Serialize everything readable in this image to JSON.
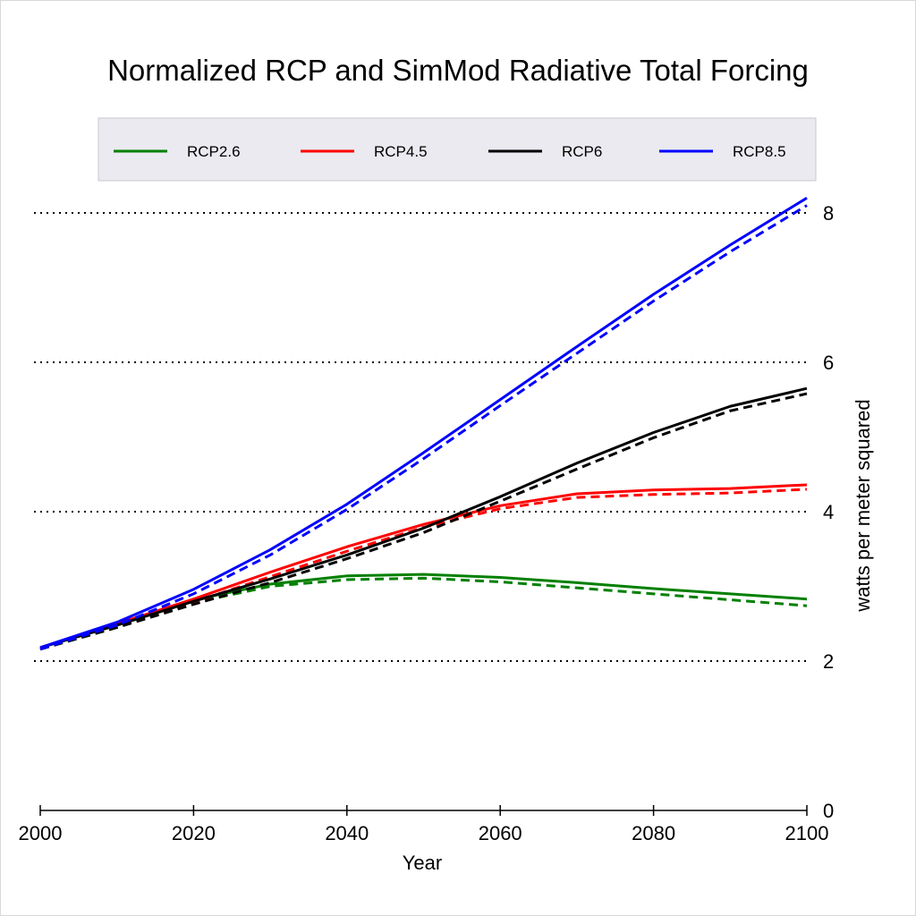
{
  "chart_data": {
    "type": "line",
    "title": "Normalized RCP and SimMod Radiative Total Forcing",
    "xlabel": "Year",
    "ylabel": "watts per meter squared",
    "xlim": [
      2000,
      2100
    ],
    "ylim": [
      0,
      8
    ],
    "x_ticks": [
      2000,
      2020,
      2040,
      2060,
      2080,
      2100
    ],
    "y_ticks": [
      0,
      2,
      4,
      6,
      8
    ],
    "y_ticks_labels": [
      "0",
      "2",
      "4",
      "6",
      "8"
    ],
    "x_ticks_labels": [
      "2000",
      "2020",
      "2040",
      "2060",
      "2080",
      "2100"
    ],
    "grid": "horizontal dotted",
    "y_axis_position": "right",
    "legend_position": "top",
    "x": [
      2000,
      2010,
      2020,
      2030,
      2040,
      2050,
      2060,
      2070,
      2080,
      2090,
      2100
    ],
    "series": [
      {
        "name": "RCP2.6",
        "color": "#008000",
        "solid": [
          2.18,
          2.48,
          2.82,
          3.03,
          3.14,
          3.16,
          3.12,
          3.05,
          2.97,
          2.9,
          2.83
        ],
        "dashed": [
          2.16,
          2.45,
          2.78,
          3.0,
          3.09,
          3.11,
          3.06,
          2.98,
          2.9,
          2.82,
          2.74
        ]
      },
      {
        "name": "RCP4.5",
        "color": "#ff0000",
        "solid": [
          2.18,
          2.5,
          2.83,
          3.19,
          3.53,
          3.83,
          4.08,
          4.24,
          4.29,
          4.31,
          4.36
        ],
        "dashed": [
          2.16,
          2.46,
          2.79,
          3.13,
          3.47,
          3.79,
          4.04,
          4.19,
          4.23,
          4.25,
          4.3
        ]
      },
      {
        "name": "RCP6",
        "color": "#000000",
        "solid": [
          2.18,
          2.48,
          2.8,
          3.1,
          3.42,
          3.78,
          4.2,
          4.65,
          5.06,
          5.41,
          5.65
        ],
        "dashed": [
          2.16,
          2.45,
          2.76,
          3.05,
          3.37,
          3.72,
          4.14,
          4.57,
          4.99,
          5.35,
          5.58
        ]
      },
      {
        "name": "RCP8.5",
        "color": "#0000ff",
        "solid": [
          2.18,
          2.52,
          2.96,
          3.49,
          4.1,
          4.79,
          5.5,
          6.21,
          6.91,
          7.57,
          8.2
        ],
        "dashed": [
          2.16,
          2.48,
          2.9,
          3.42,
          4.03,
          4.71,
          5.42,
          6.12,
          6.82,
          7.48,
          8.1
        ]
      }
    ]
  }
}
